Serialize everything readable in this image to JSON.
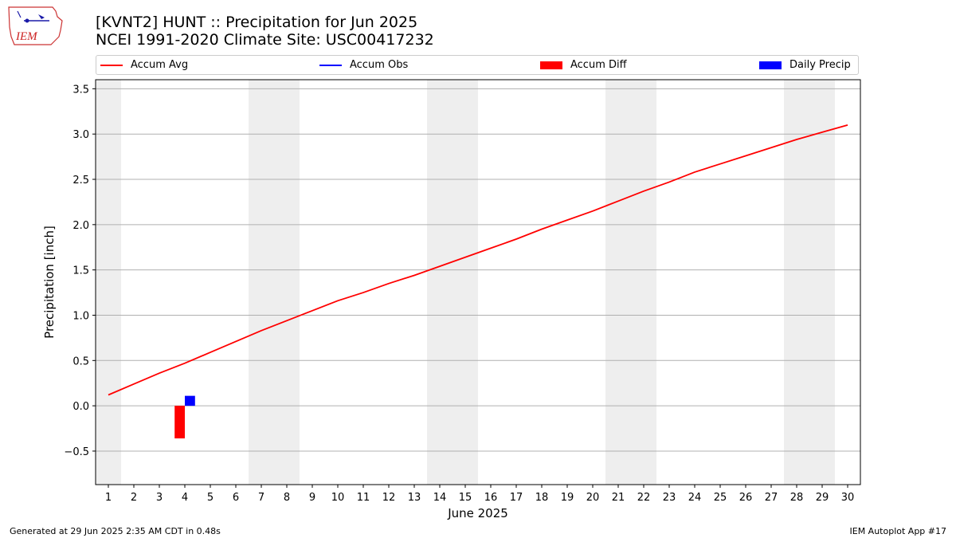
{
  "header": {
    "title_line1": "[KVNT2] HUNT :: Precipitation for Jun 2025",
    "title_line2": "NCEI 1991-2020 Climate Site: USC00417232",
    "logo_text": "IEM"
  },
  "legend": {
    "items": [
      {
        "label": "Accum Avg",
        "color": "#ff0000",
        "kind": "line"
      },
      {
        "label": "Accum Obs",
        "color": "#0000ff",
        "kind": "line"
      },
      {
        "label": "Accum Diff",
        "color": "#ff0000",
        "kind": "box"
      },
      {
        "label": "Daily Precip",
        "color": "#0000ff",
        "kind": "box"
      }
    ],
    "placement": "top"
  },
  "chart_data": {
    "type": "line",
    "title": "[KVNT2] HUNT :: Precipitation for Jun 2025",
    "subtitle": "NCEI 1991-2020 Climate Site: USC00417232",
    "xlabel": "June 2025",
    "ylabel": "Precipitation [inch]",
    "x": [
      1,
      2,
      3,
      4,
      5,
      6,
      7,
      8,
      9,
      10,
      11,
      12,
      13,
      14,
      15,
      16,
      17,
      18,
      19,
      20,
      21,
      22,
      23,
      24,
      25,
      26,
      27,
      28,
      29,
      30
    ],
    "xlim": [
      0.5,
      30.5
    ],
    "ylim": [
      -0.87,
      3.6
    ],
    "yticks": [
      -0.5,
      0.0,
      0.5,
      1.0,
      1.5,
      2.0,
      2.5,
      3.0,
      3.5
    ],
    "ytick_labels": [
      "−0.5",
      "0.0",
      "0.5",
      "1.0",
      "1.5",
      "2.0",
      "2.5",
      "3.0",
      "3.5"
    ],
    "grid": "y",
    "weekend_shading": [
      [
        0.5,
        1.5
      ],
      [
        6.5,
        8.5
      ],
      [
        13.5,
        15.5
      ],
      [
        20.5,
        22.5
      ],
      [
        27.5,
        29.5
      ]
    ],
    "series": [
      {
        "name": "Accum Avg",
        "kind": "line",
        "color": "#ff0000",
        "x": [
          1,
          2,
          3,
          4,
          5,
          6,
          7,
          8,
          9,
          10,
          11,
          12,
          13,
          14,
          15,
          16,
          17,
          18,
          19,
          20,
          21,
          22,
          23,
          24,
          25,
          26,
          27,
          28,
          29,
          30
        ],
        "values": [
          0.12,
          0.24,
          0.36,
          0.47,
          0.59,
          0.71,
          0.83,
          0.94,
          1.05,
          1.16,
          1.25,
          1.35,
          1.44,
          1.54,
          1.64,
          1.74,
          1.84,
          1.95,
          2.05,
          2.15,
          2.26,
          2.37,
          2.47,
          2.58,
          2.67,
          2.76,
          2.85,
          2.94,
          3.02,
          3.1
        ]
      },
      {
        "name": "Accum Diff",
        "kind": "bar",
        "color": "#ff0000",
        "offset": -0.2,
        "x": [
          4
        ],
        "values": [
          -0.36
        ]
      },
      {
        "name": "Daily Precip",
        "kind": "bar",
        "color": "#0000ff",
        "offset": 0.2,
        "x": [
          4
        ],
        "values": [
          0.11
        ]
      }
    ]
  },
  "footer": {
    "generated": "Generated at 29 Jun 2025 2:35 AM CDT in 0.48s",
    "app": "IEM Autoplot App #17"
  }
}
